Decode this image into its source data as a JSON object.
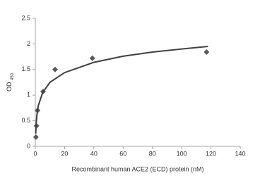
{
  "chart_data": {
    "type": "scatter",
    "xlabel": "Recombinant human ACE2 (ECD) protein (nM)",
    "ylabel": "OD",
    "ylabel_sub": "450",
    "xlim": [
      0,
      140
    ],
    "xticks": [
      0,
      20,
      40,
      60,
      80,
      100,
      120,
      140
    ],
    "ylim": [
      0,
      2.5
    ],
    "yticks": [
      0,
      0.5,
      1,
      1.5,
      2,
      2.5
    ],
    "grid": false,
    "series": [
      {
        "type": "scatter",
        "color": "#595959",
        "x": [
          0.4,
          0.8,
          1.5,
          5.3,
          13.5,
          39,
          117
        ],
        "values": [
          0.18,
          0.4,
          0.7,
          1.07,
          1.5,
          1.72,
          1.84
        ]
      },
      {
        "type": "line",
        "color": "#404040",
        "x": [
          0.3,
          0.5,
          1,
          2,
          5,
          10,
          20,
          40,
          60,
          80,
          100,
          118
        ],
        "values": [
          0.25,
          0.39,
          0.59,
          0.79,
          1.05,
          1.25,
          1.44,
          1.64,
          1.76,
          1.84,
          1.9,
          1.95
        ]
      }
    ]
  }
}
